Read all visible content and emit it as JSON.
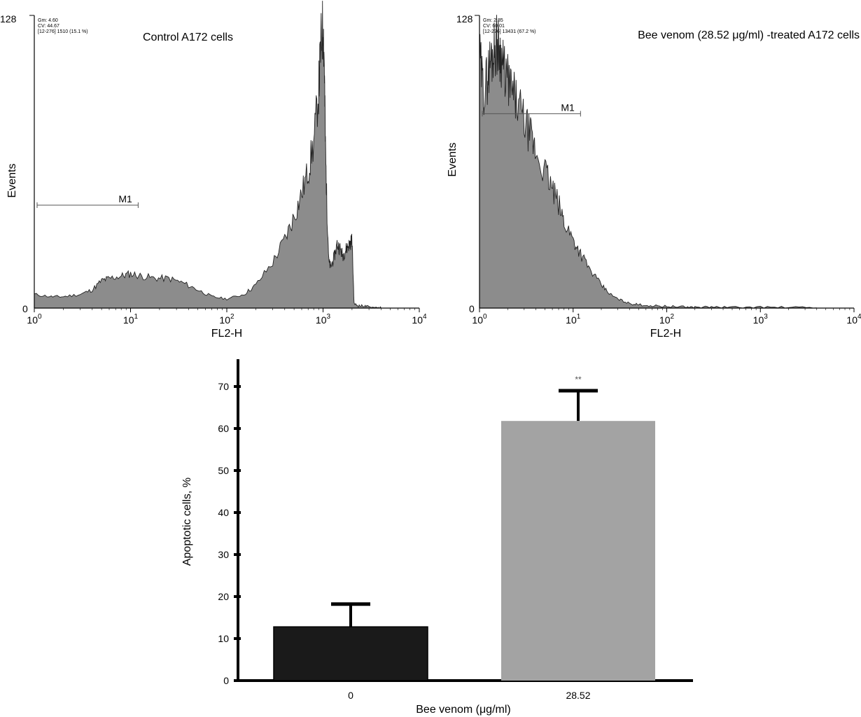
{
  "chart_data": [
    {
      "type": "area",
      "panel": "histogram-control",
      "title": "Control A172 cells",
      "xlabel": "FL2-H",
      "ylabel": "Events",
      "x_scale": "log",
      "xlim": [
        1,
        10000
      ],
      "ylim": [
        0,
        128
      ],
      "y_tick_labels": [
        "128",
        "0"
      ],
      "x_tick_labels": [
        {
          "base": "10",
          "exp": "0"
        },
        {
          "base": "10",
          "exp": "1"
        },
        {
          "base": "10",
          "exp": "2"
        },
        {
          "base": "10",
          "exp": "3"
        },
        {
          "base": "10",
          "exp": "4"
        }
      ],
      "stats": [
        "Gm:   4.60",
        "CV:   44.67",
        "[12-276] 1510    (15.1 %)"
      ],
      "marker": {
        "label": "M1",
        "x_range": [
          1,
          12
        ],
        "y": 45
      },
      "fill": "#8c8c8c",
      "x": [
        1,
        1.5,
        2,
        3,
        4,
        5,
        6,
        8,
        10,
        13,
        18,
        25,
        35,
        50,
        70,
        100,
        150,
        200,
        300,
        400,
        500,
        600,
        700,
        800,
        900,
        950,
        1000,
        1030,
        1060,
        1100,
        1150,
        1200,
        1300,
        1400,
        1500,
        1600,
        1700,
        1800,
        1900,
        2000,
        2100,
        2300,
        2600,
        3000,
        3500,
        4000
      ],
      "y": [
        6,
        5,
        5,
        6,
        8,
        12,
        13,
        14,
        15,
        14,
        13,
        13,
        11,
        8,
        5,
        4,
        6,
        10,
        20,
        30,
        40,
        50,
        60,
        72,
        95,
        115,
        124,
        108,
        70,
        42,
        20,
        18,
        22,
        28,
        26,
        23,
        25,
        27,
        28,
        30,
        2,
        1,
        1,
        0.5,
        0.3,
        0.2
      ]
    },
    {
      "type": "area",
      "panel": "histogram-treated",
      "title": "Bee venom (28.52 μg/ml) -treated A172 cells",
      "xlabel": "FL2-H",
      "ylabel": "Events",
      "x_scale": "log",
      "xlim": [
        1,
        10000
      ],
      "ylim": [
        0,
        128
      ],
      "y_tick_labels": [
        "128",
        "0"
      ],
      "x_tick_labels": [
        {
          "base": "10",
          "exp": "0"
        },
        {
          "base": "10",
          "exp": "1"
        },
        {
          "base": "10",
          "exp": "2"
        },
        {
          "base": "10",
          "exp": "3"
        },
        {
          "base": "10",
          "exp": "4"
        }
      ],
      "stats": [
        "Gm:   2.85",
        "CV:   60.01",
        "[12-276] 13431    (67.2 %)"
      ],
      "marker": {
        "label": "M1",
        "x_range": [
          1,
          12
        ],
        "y": 85
      },
      "fill": "#8c8c8c",
      "x": [
        1,
        1.1,
        1.2,
        1.3,
        1.4,
        1.5,
        1.6,
        1.7,
        1.8,
        2,
        2.2,
        2.5,
        3,
        3.5,
        4,
        5,
        6,
        7,
        8,
        10,
        12,
        15,
        20,
        25,
        30,
        40,
        50,
        70,
        100,
        150,
        200,
        300,
        500,
        1000,
        2000,
        4000
      ],
      "y": [
        110,
        95,
        100,
        108,
        112,
        116,
        114,
        110,
        105,
        100,
        95,
        90,
        82,
        75,
        68,
        60,
        52,
        45,
        38,
        30,
        24,
        17,
        10,
        6,
        4,
        2,
        1.5,
        1,
        0.8,
        0.5,
        0.4,
        0.5,
        0.3,
        0.4,
        0.3,
        0.1
      ]
    },
    {
      "type": "bar",
      "panel": "apoptosis-bar",
      "title": "",
      "xlabel": "Bee venom (μg/ml)",
      "ylabel": "Apoptotic cells, %",
      "categories": [
        "0",
        "28.52"
      ],
      "values": [
        12.8,
        61.8
      ],
      "error": [
        5.4,
        7.2
      ],
      "significance": [
        "",
        "**"
      ],
      "colors": [
        "#1a1a1a",
        "#a3a3a3"
      ],
      "ylim": [
        0,
        77
      ],
      "y_ticks": [
        "0",
        "10",
        "20",
        "30",
        "40",
        "50",
        "60",
        "70"
      ]
    }
  ]
}
